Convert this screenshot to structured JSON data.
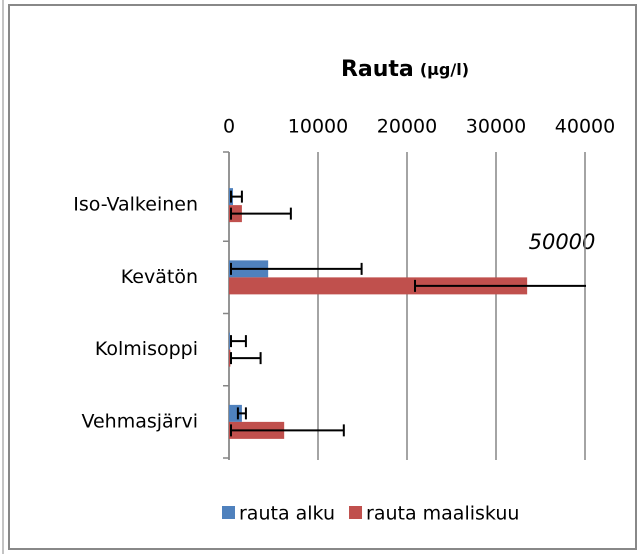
{
  "chart_data": {
    "type": "hbar",
    "title": "Rauta",
    "title_unit": "(µg/l)",
    "categories": [
      "Iso-Valkeinen",
      "Kevätön",
      "Kolmisoppi",
      "Vehmasjärvi"
    ],
    "series": [
      {
        "name": "rauta alku",
        "color": "#4f81bd",
        "values": [
          450,
          4400,
          100,
          1450
        ],
        "errors": [
          1000,
          10500,
          1800,
          450
        ]
      },
      {
        "name": "rauta maaliskuu",
        "color": "#c0504d",
        "values": [
          1450,
          33500,
          150,
          6200
        ],
        "errors": [
          5500,
          12600,
          3400,
          6700
        ]
      }
    ],
    "xlim": [
      0,
      40000
    ],
    "xticks": [
      0,
      10000,
      20000,
      30000,
      40000
    ],
    "grid": true,
    "annotation": "50000",
    "legend": "bottom"
  }
}
